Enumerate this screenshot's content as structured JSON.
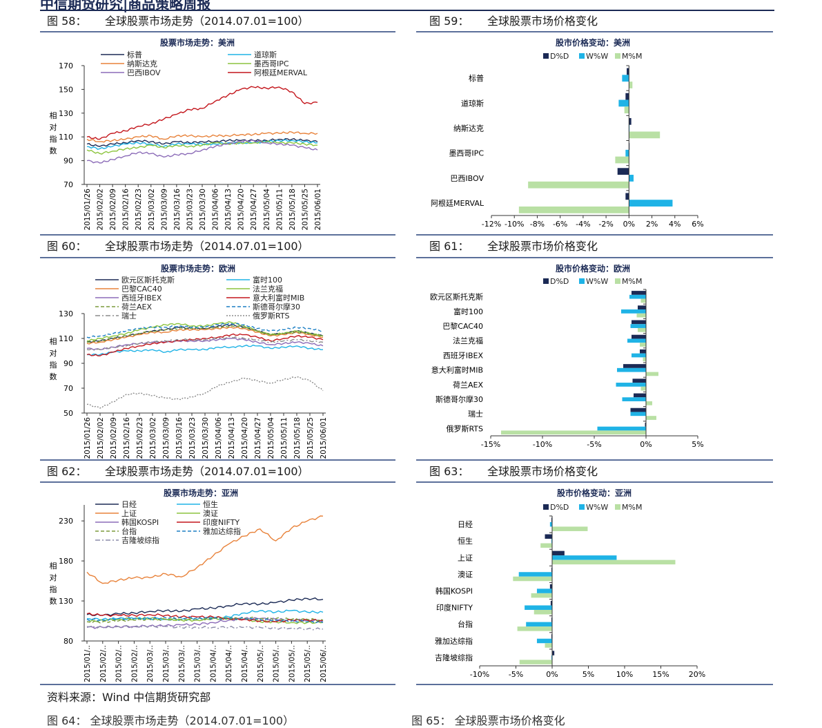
{
  "header": {
    "text": "中信期货研究|商品策略周报"
  },
  "source": "资料来源：Wind  中信期货研究部",
  "bottom_cut": {
    "left": "图 64：   全球股票市场走势（2014.07.01=100）",
    "right": "图 65：   全球股票市场价格变化"
  },
  "figures": [
    {
      "num": "图 58：",
      "title": "全球股票市场走势（2014.07.01=100）"
    },
    {
      "num": "图 59：",
      "title": "全球股票市场价格变化"
    },
    {
      "num": "图 60：",
      "title": "全球股票市场走势（2014.07.01=100）"
    },
    {
      "num": "图 61：",
      "title": "全球股票市场价格变化"
    },
    {
      "num": "图 62：",
      "title": "全球股票市场走势（2014.07.01=100）"
    },
    {
      "num": "图 63：",
      "title": "全球股票市场价格变化"
    }
  ],
  "chart_data": [
    {
      "id": "line-americas",
      "type": "line",
      "title": "股票市场走势：美洲",
      "ylabel": "相对指数",
      "yticks": [
        70,
        90,
        110,
        130,
        150,
        170
      ],
      "ylim": [
        70,
        170
      ],
      "xlabels": [
        "2015/01/26",
        "2015/02/02",
        "2015/02/09",
        "2015/02/16",
        "2015/02/23",
        "2015/03/02",
        "2015/03/09",
        "2015/03/16",
        "2015/03/23",
        "2015/03/30",
        "2015/04/06",
        "2015/04/13",
        "2015/04/20",
        "2015/04/27",
        "2015/05/04",
        "2015/05/11",
        "2015/05/18",
        "2015/05/25",
        "2015/06/01"
      ],
      "series": [
        {
          "name": "标普",
          "color": "#1b2a55",
          "style": "solid",
          "values": [
            104,
            102,
            104,
            105,
            107,
            106,
            104,
            106,
            105,
            106,
            106,
            107,
            107,
            107,
            107,
            108,
            108,
            107,
            106
          ]
        },
        {
          "name": "道琼斯",
          "color": "#1fb3e6",
          "style": "solid",
          "values": [
            102,
            100,
            102,
            104,
            105,
            104,
            102,
            104,
            104,
            104,
            104,
            105,
            105,
            105,
            106,
            107,
            107,
            106,
            105
          ]
        },
        {
          "name": "纳斯达克",
          "color": "#e8823a",
          "style": "solid",
          "values": [
            108,
            106,
            107,
            108,
            110,
            111,
            108,
            111,
            111,
            110,
            111,
            111,
            112,
            112,
            113,
            113,
            114,
            113,
            113
          ]
        },
        {
          "name": "墨西哥IPC",
          "color": "#8cc43e",
          "style": "solid",
          "values": [
            99,
            96,
            98,
            100,
            101,
            103,
            101,
            103,
            102,
            103,
            105,
            104,
            105,
            105,
            106,
            105,
            105,
            104,
            103
          ]
        },
        {
          "name": "巴西IBOV",
          "color": "#8c6cb8",
          "style": "solid",
          "values": [
            90,
            88,
            91,
            94,
            97,
            96,
            93,
            95,
            96,
            99,
            102,
            104,
            106,
            107,
            105,
            104,
            103,
            101,
            99
          ]
        },
        {
          "name": "阿根廷MERVAL",
          "color": "#c3151b",
          "style": "solid",
          "values": [
            110,
            108,
            113,
            115,
            119,
            121,
            125,
            129,
            133,
            134,
            140,
            145,
            150,
            152,
            151,
            152,
            148,
            138,
            139
          ]
        }
      ]
    },
    {
      "id": "bar-americas",
      "type": "bar",
      "orientation": "horizontal",
      "title": "股市价格变动：美洲",
      "categories": [
        "标普",
        "道琼斯",
        "纳斯达克",
        "墨西哥IPC",
        "巴西IBOV",
        "阿根廷MERVAL"
      ],
      "xlim": [
        -12,
        6
      ],
      "xticks": [
        -12,
        -10,
        -8,
        -6,
        -4,
        -2,
        0,
        2,
        4,
        6
      ],
      "unit": "%",
      "series": [
        {
          "name": "D%D",
          "color": "#1b2a55",
          "values": [
            -0.2,
            -0.3,
            0.2,
            0.05,
            -1.0,
            -0.3
          ]
        },
        {
          "name": "W%W",
          "color": "#1fb3e6",
          "values": [
            -0.6,
            -0.9,
            0.0,
            -0.3,
            0.4,
            3.8
          ]
        },
        {
          "name": "M%M",
          "color": "#b9e0a4",
          "values": [
            0.3,
            -0.4,
            2.7,
            -1.2,
            -8.8,
            -9.6
          ]
        }
      ]
    },
    {
      "id": "line-europe",
      "type": "line",
      "title": "股票市场走势：欧洲",
      "ylabel": "相对指数",
      "yticks": [
        50,
        70,
        90,
        110,
        130
      ],
      "ylim": [
        50,
        130
      ],
      "xlabels": [
        "2015/01/26",
        "2015/02/02",
        "2015/02/09",
        "2015/02/16",
        "2015/02/23",
        "2015/03/02",
        "2015/03/09",
        "2015/03/16",
        "2015/03/23",
        "2015/03/30",
        "2015/04/06",
        "2015/04/13",
        "2015/04/20",
        "2015/04/27",
        "2015/05/04",
        "2015/05/11",
        "2015/05/18",
        "2015/05/25",
        "2015/06/01"
      ],
      "series": [
        {
          "name": "欧元区斯托克斯",
          "color": "#1b2a55",
          "style": "solid",
          "values": [
            107,
            108,
            110,
            112,
            114,
            116,
            117,
            119,
            118,
            118,
            120,
            121,
            119,
            116,
            113,
            114,
            116,
            114,
            112
          ]
        },
        {
          "name": "富时100",
          "color": "#1fb3e6",
          "style": "solid",
          "values": [
            97,
            97,
            99,
            100,
            100,
            101,
            99,
            101,
            101,
            101,
            103,
            103,
            104,
            104,
            102,
            103,
            104,
            102,
            101
          ]
        },
        {
          "name": "巴黎CAC40",
          "color": "#e8823a",
          "style": "solid",
          "values": [
            106,
            107,
            109,
            111,
            113,
            115,
            115,
            117,
            117,
            117,
            118,
            119,
            118,
            115,
            112,
            113,
            115,
            113,
            111
          ]
        },
        {
          "name": "法兰克福",
          "color": "#8cc43e",
          "style": "solid",
          "values": [
            108,
            110,
            112,
            114,
            117,
            119,
            121,
            122,
            120,
            120,
            122,
            123,
            120,
            116,
            113,
            114,
            116,
            114,
            112
          ]
        },
        {
          "name": "西班牙IBEX",
          "color": "#8c6cb8",
          "style": "solid",
          "values": [
            102,
            101,
            103,
            105,
            106,
            107,
            107,
            108,
            108,
            108,
            109,
            110,
            109,
            107,
            105,
            106,
            107,
            106,
            104
          ]
        },
        {
          "name": "意大利富时MIB",
          "color": "#c3151b",
          "style": "solid",
          "values": [
            97,
            96,
            99,
            102,
            104,
            106,
            107,
            108,
            109,
            110,
            111,
            113,
            113,
            111,
            108,
            110,
            112,
            111,
            109
          ]
        },
        {
          "name": "荷兰AEX",
          "color": "#7a9a3a",
          "style": "dashed",
          "values": [
            107,
            108,
            110,
            112,
            114,
            116,
            117,
            118,
            118,
            118,
            119,
            120,
            119,
            116,
            113,
            114,
            115,
            114,
            112
          ]
        },
        {
          "name": "斯德哥尔摩30",
          "color": "#1b7fc4",
          "style": "dashed",
          "values": [
            111,
            112,
            114,
            116,
            118,
            119,
            119,
            120,
            119,
            119,
            121,
            122,
            121,
            118,
            116,
            117,
            119,
            118,
            116
          ]
        },
        {
          "name": "瑞士",
          "color": "#8a8a8a",
          "style": "dashdot",
          "values": [
            101,
            101,
            103,
            104,
            106,
            107,
            108,
            109,
            109,
            109,
            110,
            111,
            110,
            109,
            107,
            108,
            109,
            108,
            107
          ]
        },
        {
          "name": "俄罗斯RTS",
          "color": "#8a8a8a",
          "style": "dotted",
          "values": [
            57,
            54,
            59,
            65,
            66,
            64,
            62,
            61,
            63,
            66,
            72,
            75,
            78,
            76,
            74,
            77,
            79,
            76,
            68
          ]
        }
      ]
    },
    {
      "id": "bar-europe",
      "type": "bar",
      "orientation": "horizontal",
      "title": "股市价格变动：欧洲",
      "categories": [
        "欧元区斯托克斯",
        "富时100",
        "巴黎CAC40",
        "法兰克福",
        "西班牙IBEX",
        "意大利富时MIB",
        "荷兰AEX",
        "斯德哥尔摩30",
        "瑞士",
        "俄罗斯RTS"
      ],
      "xlim": [
        -15,
        5
      ],
      "xticks": [
        -15,
        -10,
        -5,
        0,
        5
      ],
      "unit": "%",
      "series": [
        {
          "name": "D%D",
          "color": "#1b2a55",
          "values": [
            -1.4,
            -0.8,
            -1.4,
            -1.4,
            -0.6,
            -2.2,
            -1.3,
            -1.2,
            -1.5,
            -0.1
          ]
        },
        {
          "name": "W%W",
          "color": "#1fb3e6",
          "values": [
            -1.6,
            -2.4,
            -1.5,
            -1.8,
            -1.4,
            -2.8,
            -2.9,
            -2.3,
            -1.5,
            -4.7
          ]
        },
        {
          "name": "M%M",
          "color": "#b9e0a4",
          "values": [
            -0.5,
            -0.9,
            -0.8,
            -0.6,
            -0.3,
            1.2,
            -0.5,
            0.6,
            1.0,
            -14.0
          ]
        }
      ]
    },
    {
      "id": "line-asia",
      "type": "line",
      "title": "股票市场走势：亚洲",
      "ylabel": "相对指数",
      "yticks": [
        80,
        130,
        180,
        230
      ],
      "ylim": [
        80,
        250
      ],
      "xlabels": [
        "2015/01/..",
        "2015/02/..",
        "2015/02/..",
        "2015/02/..",
        "2015/03/..",
        "2015/03/..",
        "2015/03/..",
        "2015/03/..",
        "2015/04/..",
        "2015/04/..",
        "2015/04/..",
        "2015/05/..",
        "2015/05/..",
        "2015/05/..",
        "2015/05/..",
        "2015/06/.."
      ],
      "series": [
        {
          "name": "日经",
          "color": "#1b2a55",
          "style": "solid",
          "values": [
            113,
            112,
            114,
            115,
            117,
            118,
            117,
            120,
            121,
            124,
            127,
            126,
            128,
            131,
            133,
            132
          ]
        },
        {
          "name": "恒生",
          "color": "#1fb3e6",
          "style": "solid",
          "values": [
            108,
            107,
            108,
            108,
            108,
            107,
            107,
            107,
            109,
            110,
            115,
            118,
            116,
            118,
            116,
            116
          ]
        },
        {
          "name": "上证",
          "color": "#e8823a",
          "style": "solid",
          "values": [
            166,
            152,
            156,
            159,
            159,
            164,
            160,
            172,
            186,
            201,
            211,
            220,
            205,
            221,
            230,
            236
          ]
        },
        {
          "name": "澳证",
          "color": "#8cc43e",
          "style": "solid",
          "values": [
            104,
            106,
            107,
            108,
            108,
            107,
            106,
            106,
            108,
            108,
            107,
            104,
            104,
            103,
            103,
            103
          ]
        },
        {
          "name": "韩国KOSPI",
          "color": "#8c6cb8",
          "style": "solid",
          "values": [
            97,
            97,
            98,
            98,
            99,
            99,
            100,
            101,
            103,
            106,
            108,
            108,
            107,
            106,
            106,
            105
          ]
        },
        {
          "name": "印度NIFTY",
          "color": "#c3151b",
          "style": "solid",
          "values": [
            114,
            112,
            112,
            112,
            113,
            112,
            110,
            110,
            110,
            108,
            107,
            105,
            104,
            106,
            106,
            106
          ]
        },
        {
          "name": "台指",
          "color": "#7a9a3a",
          "style": "dashed",
          "values": [
            104,
            104,
            105,
            106,
            107,
            107,
            107,
            107,
            108,
            108,
            109,
            108,
            108,
            107,
            107,
            106
          ]
        },
        {
          "name": "雅加达综指",
          "color": "#1b7fc4",
          "style": "dashed",
          "values": [
            107,
            106,
            108,
            108,
            108,
            109,
            109,
            109,
            108,
            108,
            108,
            107,
            106,
            105,
            104,
            103
          ]
        },
        {
          "name": "吉隆坡综指",
          "color": "#8a8aa8",
          "style": "dashdot",
          "values": [
            98,
            97,
            98,
            98,
            98,
            98,
            97,
            97,
            97,
            97,
            97,
            97,
            96,
            96,
            95,
            95
          ]
        }
      ]
    },
    {
      "id": "bar-asia",
      "type": "bar",
      "orientation": "horizontal",
      "title": "股市价格变动：亚洲",
      "categories": [
        "日经",
        "恒生",
        "上证",
        "澳证",
        "韩国KOSPI",
        "印度NIFTY",
        "台指",
        "雅加达综指",
        "吉隆坡综指"
      ],
      "xlim": [
        -10,
        20
      ],
      "xticks": [
        -10,
        -5,
        0,
        5,
        10,
        15,
        20
      ],
      "unit": "%",
      "series": [
        {
          "name": "D%D",
          "color": "#1b2a55",
          "values": [
            -0.1,
            -1.0,
            1.7,
            -0.1,
            -0.3,
            -0.2,
            -0.1,
            -0.1,
            0.3
          ]
        },
        {
          "name": "W%W",
          "color": "#1fb3e6",
          "values": [
            -0.3,
            -0.1,
            8.9,
            -4.6,
            -2.1,
            -3.8,
            -3.6,
            -2.1,
            -0.1
          ]
        },
        {
          "name": "M%M",
          "color": "#b9e0a4",
          "values": [
            4.9,
            -1.6,
            17.0,
            -5.4,
            -2.9,
            -2.5,
            -4.8,
            -1.0,
            -4.5
          ]
        }
      ]
    }
  ]
}
